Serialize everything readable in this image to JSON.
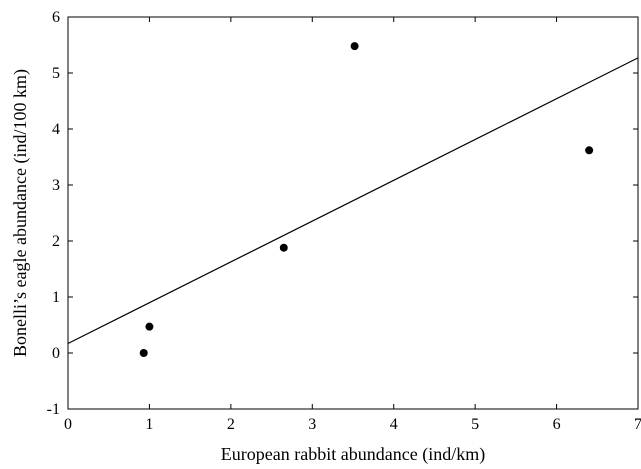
{
  "chart_data": {
    "type": "scatter",
    "title": "",
    "xlabel": "European rabbit abundance (ind/km)",
    "ylabel": "Bonelli’s eagle abundance (ind/100 km)",
    "xlim": [
      0,
      7
    ],
    "ylim": [
      -1,
      6
    ],
    "x_ticks": [
      0,
      1,
      2,
      3,
      4,
      5,
      6,
      7
    ],
    "y_ticks": [
      -1,
      0,
      1,
      2,
      3,
      4,
      5,
      6
    ],
    "grid": false,
    "legend": "none",
    "series": [
      {
        "points": [
          {
            "x": 0.93,
            "y": 0.0
          },
          {
            "x": 1.0,
            "y": 0.47
          },
          {
            "x": 2.65,
            "y": 1.88
          },
          {
            "x": 3.52,
            "y": 5.48
          },
          {
            "x": 6.4,
            "y": 3.62
          }
        ]
      }
    ],
    "trendline": {
      "type": "linear",
      "x_start": 0,
      "y_start": 0.17,
      "x_end": 7,
      "y_end": 5.27
    }
  }
}
